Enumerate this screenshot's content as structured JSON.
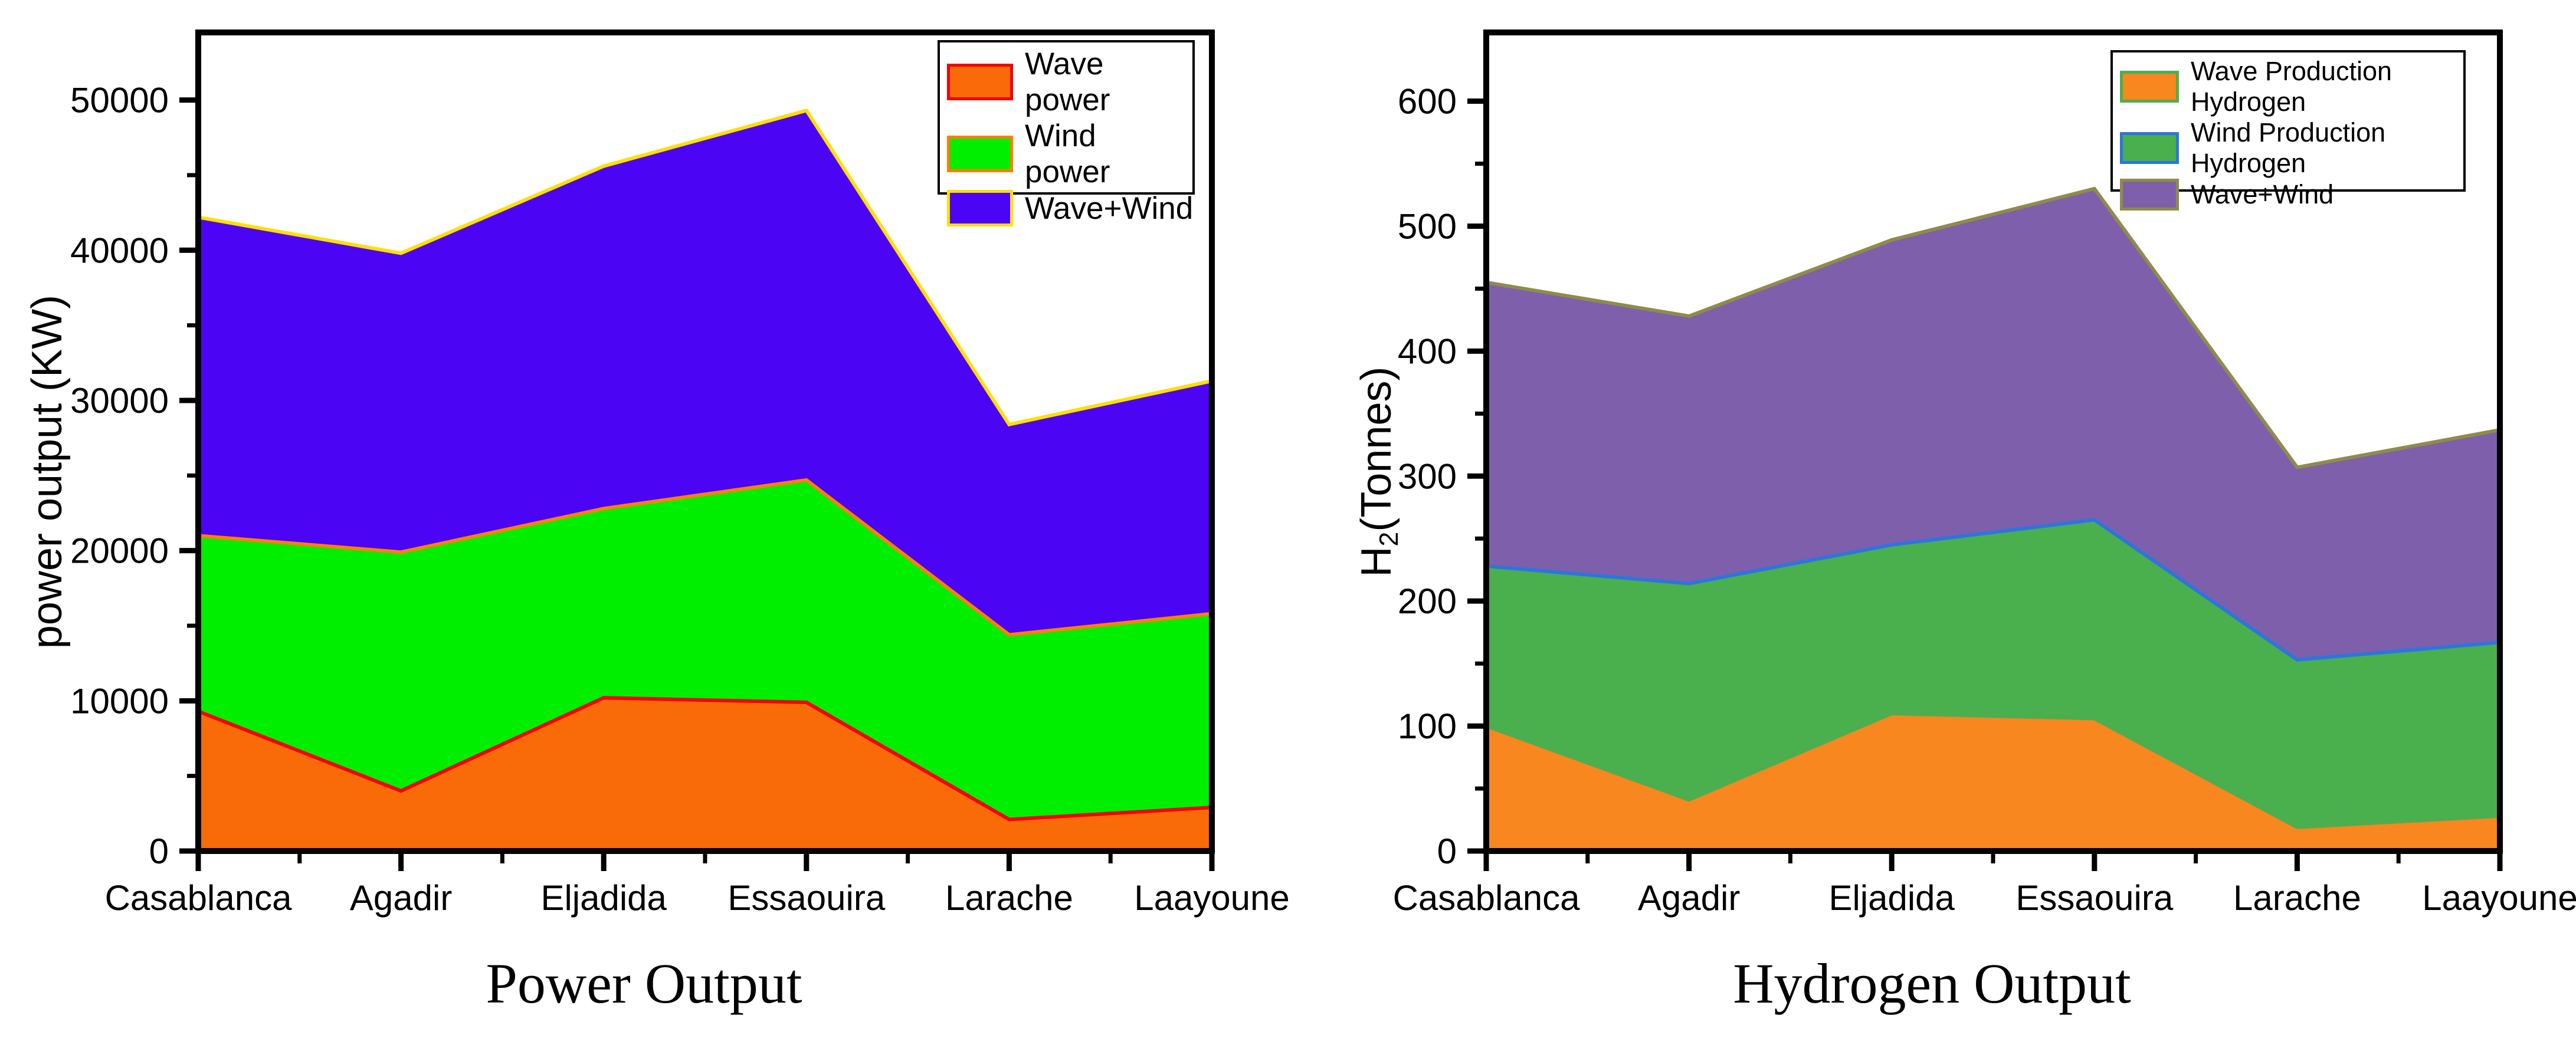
{
  "figure": {
    "background": "#ffffff",
    "text_color": "#000000"
  },
  "chart_data": [
    {
      "type": "area",
      "title": "Power Output",
      "ylabel": "power output (KW)",
      "ylabel_rich": {
        "base1": "power output (KW)",
        "sub": "",
        "base2": ""
      },
      "xlabel": "",
      "categories": [
        "Casablanca",
        "Agadir",
        "Eljadida",
        "Essaouira",
        "Larache",
        "Laayoune"
      ],
      "series": [
        {
          "name": "Wave power",
          "fill": "#F96A08",
          "edge": "#F40000",
          "values": [
            9300,
            4000,
            10200,
            9900,
            2100,
            2900
          ]
        },
        {
          "name": "Wind power",
          "fill": "#00EE00",
          "edge": "#FF7F00",
          "values": [
            21000,
            19900,
            22800,
            24700,
            14400,
            15800
          ]
        },
        {
          "name": "Wave+Wind",
          "fill": "#4C04F4",
          "edge": "#FFDF00",
          "values": [
            42200,
            39800,
            45600,
            49300,
            28400,
            31300
          ]
        }
      ],
      "series_note": "values are the cumulative stacked top boundary of each band as drawn (KW)",
      "ylim": [
        0,
        54500
      ],
      "yticks": [
        0,
        10000,
        20000,
        30000,
        40000,
        50000
      ],
      "y_minor_step": 5000,
      "grid": false,
      "legend_position": "top-right"
    },
    {
      "type": "area",
      "title": "Hydrogen Output",
      "ylabel": "H2(Tonnes)",
      "ylabel_rich": {
        "base1": "H",
        "sub": "2",
        "base2": "(Tonnes)"
      },
      "xlabel": "",
      "categories": [
        "Casablanca",
        "Agadir",
        "Eljadida",
        "Essaouira",
        "Larache",
        "Laayoune"
      ],
      "series": [
        {
          "name": "Wave Production Hydrogen",
          "fill": "#F7871E",
          "edge": "#4CAE50",
          "values": [
            100,
            41,
            110,
            106,
            19,
            28
          ]
        },
        {
          "name": "Wind Production Hydrogen",
          "fill": "#4AAF4D",
          "edge": "#2E74E0",
          "values": [
            228,
            214,
            245,
            265,
            153,
            167
          ]
        },
        {
          "name": "Wave+Wind",
          "fill": "#7E5FAC",
          "edge": "#8C8D4A",
          "values": [
            455,
            428,
            489,
            530,
            307,
            337
          ]
        }
      ],
      "series_note": "values are the cumulative stacked top boundary of each band as drawn (tonnes)",
      "ylim": [
        0,
        655
      ],
      "yticks": [
        0,
        100,
        200,
        300,
        400,
        500,
        600
      ],
      "y_minor_step": 50,
      "grid": false,
      "legend_position": "top-right"
    }
  ]
}
